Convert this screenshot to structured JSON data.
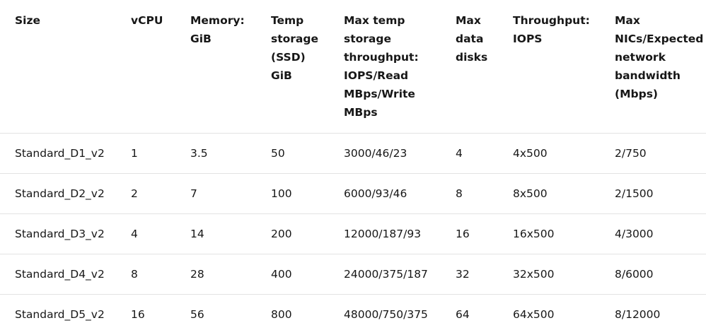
{
  "table": {
    "headers": [
      [
        "Size"
      ],
      [
        "vCPU"
      ],
      [
        "Memory:",
        "GiB"
      ],
      [
        "Temp",
        "storage",
        "(SSD)",
        "GiB"
      ],
      [
        "Max temp",
        "storage",
        "throughput:",
        "IOPS/Read",
        "MBps/Write",
        "MBps"
      ],
      [
        "Max",
        "data",
        "disks"
      ],
      [
        "Throughput:",
        "IOPS"
      ],
      [
        "Max",
        "NICs/Expected",
        "network",
        "bandwidth",
        "(Mbps)"
      ]
    ],
    "rows": [
      [
        "Standard_D1_v2",
        "1",
        "3.5",
        "50",
        "3000/46/23",
        "4",
        "4x500",
        "2/750"
      ],
      [
        "Standard_D2_v2",
        "2",
        "7",
        "100",
        "6000/93/46",
        "8",
        "8x500",
        "2/1500"
      ],
      [
        "Standard_D3_v2",
        "4",
        "14",
        "200",
        "12000/187/93",
        "16",
        "16x500",
        "4/3000"
      ],
      [
        "Standard_D4_v2",
        "8",
        "28",
        "400",
        "24000/375/187",
        "32",
        "32x500",
        "8/6000"
      ],
      [
        "Standard_D5_v2",
        "16",
        "56",
        "800",
        "48000/750/375",
        "64",
        "64x500",
        "8/12000"
      ]
    ]
  }
}
